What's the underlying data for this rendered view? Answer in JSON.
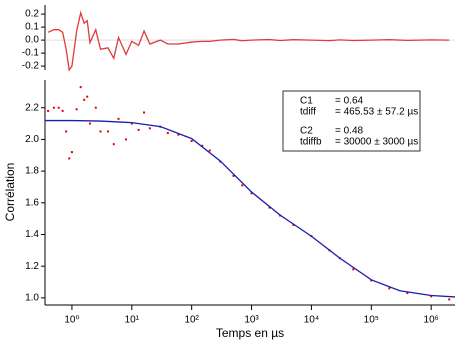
{
  "chart_data": [
    {
      "type": "line",
      "xscale": "log",
      "xlim": [
        0.355,
        2500000
      ],
      "ylim": [
        -0.23,
        0.27
      ],
      "yticks": [
        -0.2,
        -0.1,
        {
          "value": 0,
          "label": "0.0"
        },
        0.1,
        0.2
      ],
      "series": [
        {
          "color": "#e03a3a",
          "x": [
            0.4,
            0.5,
            0.6,
            0.7,
            0.8,
            0.9,
            1,
            1.2,
            1.4,
            1.6,
            1.8,
            2,
            2.5,
            3,
            4,
            5,
            6,
            8,
            10,
            13,
            16,
            20,
            30,
            40,
            60,
            100,
            150,
            200,
            300,
            500,
            700,
            1000,
            2000,
            3000,
            5000,
            10000,
            20000,
            30000,
            50000,
            100000,
            200000,
            400000,
            1000000,
            2000000
          ],
          "values": [
            0.06,
            0.08,
            0.08,
            0.06,
            -0.07,
            -0.23,
            -0.2,
            0.07,
            0.21,
            0.13,
            0.15,
            -0.02,
            0.08,
            -0.07,
            -0.06,
            -0.14,
            0.02,
            -0.11,
            -0.01,
            -0.04,
            0.07,
            -0.03,
            0.0,
            -0.03,
            -0.03,
            -0.015,
            -0.01,
            -0.01,
            0.0,
            0.005,
            -0.005,
            0.0,
            0.004,
            -0.003,
            0.003,
            0.0,
            -0.004,
            0.002,
            -0.003,
            0.0,
            0.003,
            -0.002,
            0.002,
            0.0
          ]
        }
      ]
    },
    {
      "type": "scatter",
      "xscale": "log",
      "xlim": [
        0.355,
        2500000
      ],
      "ylim": [
        0.955,
        2.375
      ],
      "xlabel": "Temps en µs",
      "ylabel": "Corrélation",
      "xticks": [
        {
          "value": 1,
          "label": "10⁰"
        },
        {
          "value": 10,
          "label": "10¹"
        },
        {
          "value": 100,
          "label": "10²"
        },
        {
          "value": 1000,
          "label": "10³"
        },
        {
          "value": 10000,
          "label": "10⁴"
        },
        {
          "value": 100000,
          "label": "10⁵"
        },
        {
          "value": 1000000,
          "label": "10⁶"
        }
      ],
      "yticks": [
        {
          "value": 1,
          "label": "1.0"
        },
        1.2,
        1.4,
        1.6,
        1.8,
        {
          "value": 2,
          "label": "2.0"
        },
        2.2
      ],
      "series": [
        {
          "type": "scatter",
          "color": "#e00000",
          "x": [
            0.4,
            0.5,
            0.6,
            0.7,
            0.8,
            0.9,
            1,
            1.2,
            1.4,
            1.6,
            1.8,
            2,
            2.5,
            3,
            4,
            5,
            6,
            8,
            10,
            13,
            16,
            20,
            30,
            40,
            60,
            100,
            150,
            200,
            300,
            500,
            700,
            1000,
            2000,
            3000,
            5000,
            10000,
            20000,
            30000,
            50000,
            100000,
            200000,
            400000,
            1000000,
            2000000
          ],
          "values": [
            2.18,
            2.2,
            2.2,
            2.18,
            2.05,
            1.88,
            1.92,
            2.19,
            2.33,
            2.25,
            2.27,
            2.1,
            2.2,
            2.05,
            2.05,
            1.97,
            2.13,
            2.0,
            2.1,
            2.06,
            2.17,
            2.07,
            2.08,
            2.04,
            2.03,
            1.99,
            1.96,
            1.93,
            1.86,
            1.77,
            1.71,
            1.66,
            1.57,
            1.52,
            1.46,
            1.39,
            1.3,
            1.25,
            1.18,
            1.11,
            1.06,
            1.03,
            1.01,
            0.99
          ]
        },
        {
          "type": "line",
          "color": "#1c1cb0",
          "x": [
            0.355,
            1,
            3,
            10,
            30,
            100,
            300,
            1000,
            3000,
            10000,
            30000,
            100000,
            300000,
            1000000,
            2500000
          ],
          "values": [
            2.119,
            2.119,
            2.116,
            2.106,
            2.081,
            2.005,
            1.864,
            1.668,
            1.522,
            1.389,
            1.25,
            1.114,
            1.045,
            1.015,
            1.006
          ]
        }
      ],
      "annotation_box": [
        {
          "name": "C1",
          "text": "= 0.64"
        },
        {
          "name": "tdiff",
          "text": "= 465.53 ± 57.2 µs"
        },
        {
          "name": "C2",
          "text": "= 0.48"
        },
        {
          "name": "tdiffb",
          "text": "= 30000 ± 3000 µs"
        }
      ]
    }
  ]
}
